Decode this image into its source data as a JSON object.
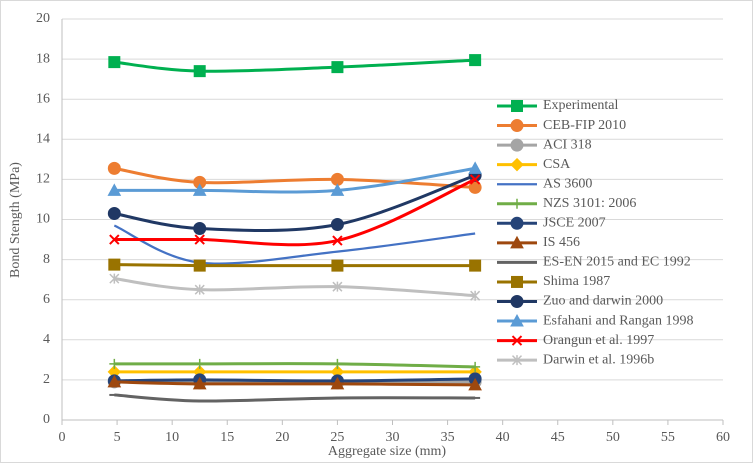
{
  "chart_data": {
    "type": "line",
    "smooth": true,
    "grid": true,
    "legend_position": "right",
    "xlabel": "Aggregate size (mm)",
    "ylabel": "Bond Stength (MPa)",
    "xlim": [
      0,
      60
    ],
    "xticks": [
      0,
      5,
      10,
      15,
      20,
      25,
      30,
      35,
      40,
      45,
      50,
      55,
      60
    ],
    "ylim": [
      0,
      20
    ],
    "yticks": [
      0,
      2,
      4,
      6,
      8,
      10,
      12,
      14,
      16,
      18,
      20
    ],
    "x": [
      4.75,
      12.5,
      25,
      37.5
    ],
    "series": [
      {
        "name": "Experimental",
        "color": "#00b050",
        "marker": "square",
        "values": [
          17.85,
          17.4,
          17.6,
          17.95
        ]
      },
      {
        "name": "CEB-FIP 2010",
        "color": "#ed7d31",
        "marker": "circle",
        "values": [
          12.55,
          11.85,
          12.0,
          11.6
        ]
      },
      {
        "name": "ACI 318",
        "color": "#a5a5a5",
        "marker": "circle",
        "values": [
          1.9,
          1.85,
          1.85,
          1.9
        ]
      },
      {
        "name": "CSA",
        "color": "#ffc000",
        "marker": "diamond",
        "values": [
          2.4,
          2.4,
          2.4,
          2.4
        ]
      },
      {
        "name": "AS 3600",
        "color": "#4472c4",
        "marker": "none",
        "values": [
          9.7,
          7.85,
          8.4,
          9.3
        ]
      },
      {
        "name": "NZS 3101: 2006",
        "color": "#70ad47",
        "marker": "plus",
        "values": [
          2.8,
          2.8,
          2.8,
          2.65
        ]
      },
      {
        "name": "JSCE 2007",
        "color": "#264478",
        "marker": "circle",
        "values": [
          1.95,
          2.0,
          1.95,
          2.05
        ]
      },
      {
        "name": "IS 456",
        "color": "#9e480e",
        "marker": "triangle",
        "values": [
          1.9,
          1.8,
          1.8,
          1.75
        ]
      },
      {
        "name": "ES-EN 2015 and EC 1992",
        "color": "#636363",
        "marker": "dash",
        "values": [
          1.25,
          0.95,
          1.1,
          1.1
        ]
      },
      {
        "name": "Shima 1987",
        "color": "#997300",
        "marker": "square",
        "values": [
          7.75,
          7.7,
          7.7,
          7.7
        ]
      },
      {
        "name": "Zuo and darwin 2000",
        "color": "#203864",
        "marker": "circle",
        "values": [
          10.3,
          9.55,
          9.75,
          12.2
        ]
      },
      {
        "name": "Esfahani and Rangan 1998",
        "color": "#5b9bd5",
        "marker": "triangle",
        "values": [
          11.45,
          11.45,
          11.45,
          12.55
        ]
      },
      {
        "name": "Orangun et al. 1997",
        "color": "#ff0000",
        "marker": "x",
        "values": [
          9.0,
          9.0,
          8.95,
          12.0
        ]
      },
      {
        "name": "Darwin et al. 1996b",
        "color": "#bfbfbf",
        "marker": "star",
        "values": [
          7.05,
          6.5,
          6.65,
          6.2
        ]
      }
    ]
  }
}
